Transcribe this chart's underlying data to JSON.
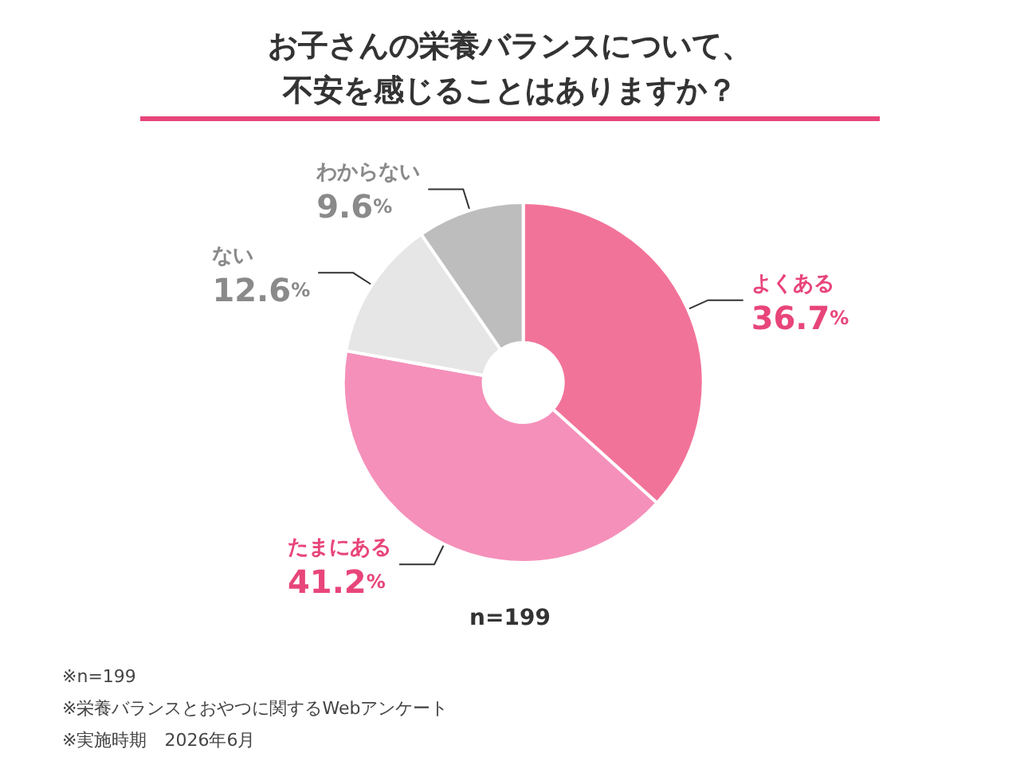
{
  "chart_data": {
    "type": "donut",
    "title": "お子さんの栄養バランスについて、不安を感じることはありますか？",
    "categories": [
      "よくある",
      "たまにある",
      "ない",
      "わからない"
    ],
    "values": [
      36.7,
      41.2,
      12.6,
      9.6
    ],
    "colors": [
      "#f27399",
      "#f590ba",
      "#e6e6e6",
      "#bdbdbd"
    ],
    "value_labels": [
      "36.7%",
      "41.2%",
      "12.6%",
      "9.6%"
    ],
    "legend": false,
    "annotations": [
      "n=199",
      "※n=199",
      "※栄養バランスとおやつに関するWebアンケート",
      "※実施時期　2026年6月"
    ]
  }
}
